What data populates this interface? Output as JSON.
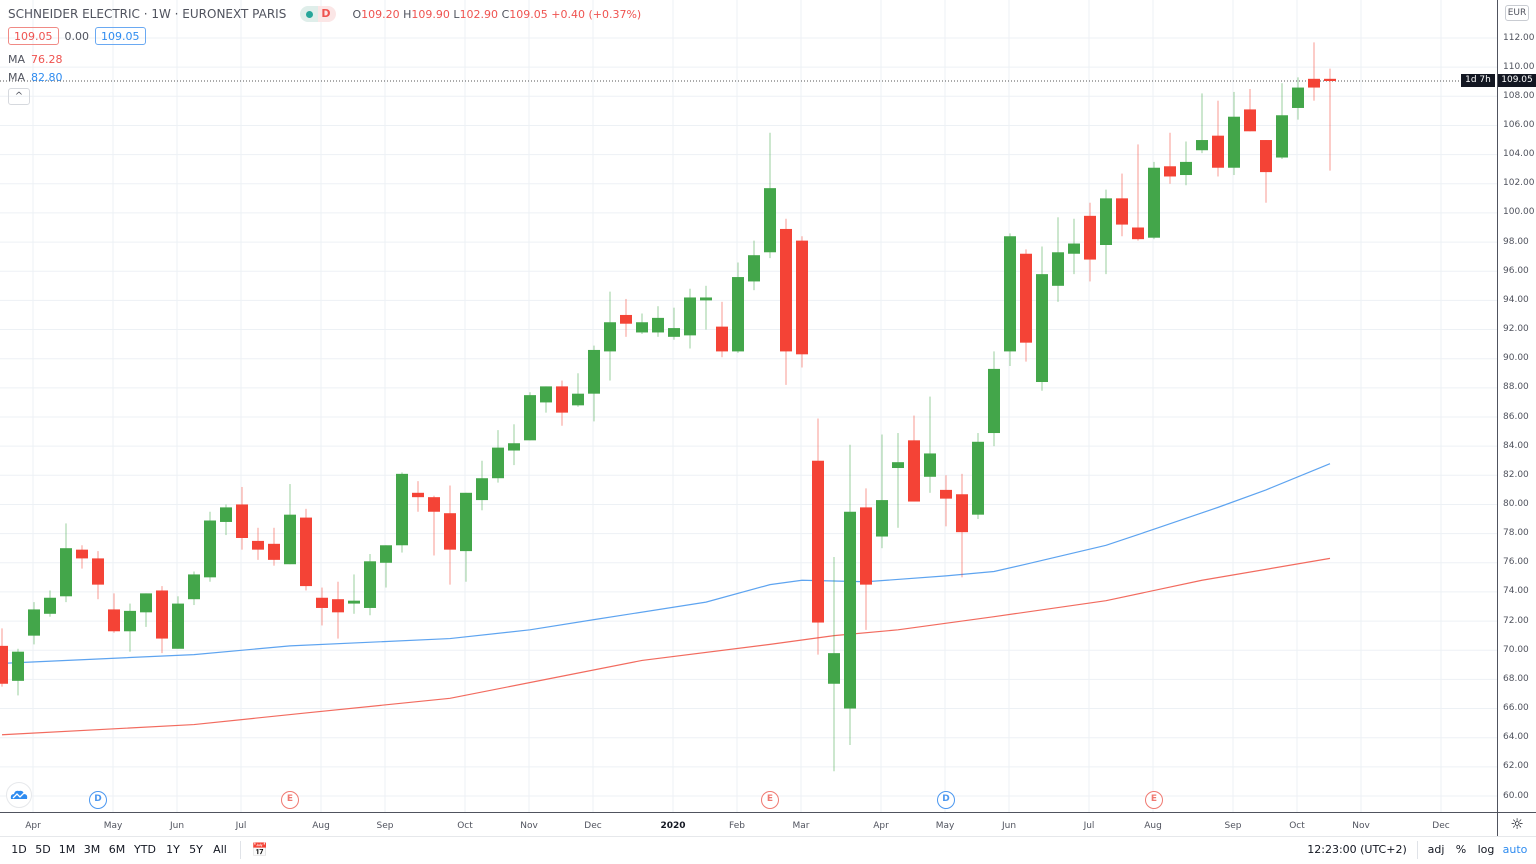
{
  "header": {
    "title": "SCHNEIDER ELECTRIC · 1W · EURONEXT PARIS",
    "market_status_badge": "D",
    "ohlc": {
      "o_label": "O",
      "o": "109.20",
      "h_label": "H",
      "h": "109.90",
      "l_label": "L",
      "l": "102.90",
      "c_label": "C",
      "c": "109.05",
      "change": "+0.40 (+0.37%)"
    },
    "bid": "109.05",
    "spread": "0.00",
    "ask": "109.05",
    "ma1": {
      "label": "MA",
      "value": "76.28"
    },
    "ma2": {
      "label": "MA",
      "value": "82.80"
    },
    "collapse_icon": "chevron-up-icon"
  },
  "right_axis": {
    "currency": "EUR",
    "ticks": [
      "112.00",
      "110.00",
      "108.00",
      "106.00",
      "104.00",
      "102.00",
      "100.00",
      "98.00",
      "96.00",
      "94.00",
      "92.00",
      "90.00",
      "88.00",
      "86.00",
      "84.00",
      "82.00",
      "80.00",
      "78.00",
      "76.00",
      "74.00",
      "72.00",
      "70.00",
      "68.00",
      "66.00",
      "64.00",
      "62.00",
      "60.00"
    ],
    "last_price": "109.05",
    "countdown": "1d 7h"
  },
  "colors": {
    "up": "#43a64a",
    "down": "#f44336",
    "ma_red": "#f26b5f",
    "ma_blue": "#5ea4f0",
    "grid": "#edf1f5"
  },
  "chart_data": {
    "type": "candlestick",
    "ylim": [
      60,
      112
    ],
    "grid": true,
    "x_ticks": [
      {
        "label": "Apr",
        "index": 2
      },
      {
        "label": "May",
        "index": 7
      },
      {
        "label": "Jun",
        "index": 11
      },
      {
        "label": "Jul",
        "index": 15
      },
      {
        "label": "Aug",
        "index": 20
      },
      {
        "label": "Sep",
        "index": 24
      },
      {
        "label": "Oct",
        "index": 29
      },
      {
        "label": "Nov",
        "index": 33
      },
      {
        "label": "Dec",
        "index": 37
      },
      {
        "label": "2020",
        "index": 42
      },
      {
        "label": "Feb",
        "index": 46
      },
      {
        "label": "Mar",
        "index": 50
      },
      {
        "label": "Apr",
        "index": 55
      },
      {
        "label": "May",
        "index": 59
      },
      {
        "label": "Jun",
        "index": 63
      },
      {
        "label": "Jul",
        "index": 68
      },
      {
        "label": "Aug",
        "index": 72
      },
      {
        "label": "Sep",
        "index": 77
      },
      {
        "label": "Oct",
        "index": 81
      },
      {
        "label": "Nov",
        "index": 85
      },
      {
        "label": "Dec",
        "index": 90
      }
    ],
    "ohlc": [
      [
        70.3,
        71.5,
        67.5,
        67.7
      ],
      [
        67.9,
        70.1,
        66.9,
        69.9
      ],
      [
        71.0,
        73.3,
        70.4,
        72.8
      ],
      [
        72.5,
        74.1,
        72.3,
        73.6
      ],
      [
        73.7,
        78.7,
        73.3,
        77.0
      ],
      [
        76.9,
        77.2,
        75.6,
        76.3
      ],
      [
        76.3,
        76.8,
        73.5,
        74.5
      ],
      [
        72.8,
        73.9,
        71.2,
        71.3
      ],
      [
        71.3,
        73.2,
        69.9,
        72.7
      ],
      [
        72.6,
        73.9,
        71.6,
        73.9
      ],
      [
        74.1,
        74.4,
        69.8,
        70.8
      ],
      [
        70.1,
        73.7,
        70.1,
        73.2
      ],
      [
        73.5,
        75.4,
        73.1,
        75.2
      ],
      [
        75.0,
        79.5,
        74.7,
        78.9
      ],
      [
        78.8,
        80.0,
        77.9,
        79.8
      ],
      [
        80.0,
        81.2,
        76.9,
        77.7
      ],
      [
        77.5,
        78.4,
        76.2,
        76.9
      ],
      [
        77.3,
        78.4,
        75.8,
        76.2
      ],
      [
        75.9,
        81.4,
        75.9,
        79.3
      ],
      [
        79.1,
        79.7,
        74.1,
        74.4
      ],
      [
        73.6,
        74.3,
        71.7,
        72.9
      ],
      [
        73.5,
        74.7,
        70.8,
        72.6
      ],
      [
        73.2,
        75.2,
        72.5,
        73.4
      ],
      [
        72.9,
        76.6,
        72.4,
        76.1
      ],
      [
        76.0,
        77.2,
        74.3,
        77.2
      ],
      [
        77.2,
        82.2,
        76.7,
        82.1
      ],
      [
        80.8,
        81.6,
        79.5,
        80.5
      ],
      [
        80.5,
        80.6,
        76.5,
        79.5
      ],
      [
        79.4,
        81.3,
        74.5,
        76.9
      ],
      [
        76.8,
        80.8,
        74.7,
        80.8
      ],
      [
        80.3,
        83.0,
        79.6,
        81.8
      ],
      [
        81.8,
        85.1,
        81.5,
        83.9
      ],
      [
        83.7,
        85.5,
        82.7,
        84.2
      ],
      [
        84.4,
        87.7,
        84.4,
        87.5
      ],
      [
        87.0,
        88.1,
        86.3,
        88.1
      ],
      [
        88.1,
        88.5,
        85.4,
        86.3
      ],
      [
        86.8,
        89.0,
        86.7,
        87.6
      ],
      [
        87.6,
        90.9,
        85.7,
        90.6
      ],
      [
        90.5,
        94.6,
        88.5,
        92.5
      ],
      [
        93.0,
        94.1,
        91.5,
        92.4
      ],
      [
        91.8,
        93.1,
        91.7,
        92.5
      ],
      [
        91.8,
        93.6,
        91.5,
        92.8
      ],
      [
        91.5,
        93.5,
        91.3,
        92.1
      ],
      [
        91.6,
        94.8,
        90.7,
        94.2
      ],
      [
        94.0,
        95.0,
        92.0,
        94.2
      ],
      [
        92.2,
        93.9,
        90.1,
        90.5
      ],
      [
        90.5,
        96.6,
        90.4,
        95.6
      ],
      [
        95.3,
        98.1,
        94.7,
        97.1
      ],
      [
        97.3,
        105.5,
        96.9,
        101.7
      ],
      [
        98.9,
        99.6,
        88.2,
        90.5
      ],
      [
        98.1,
        98.4,
        89.4,
        90.3
      ],
      [
        83.0,
        85.9,
        69.7,
        71.9
      ],
      [
        67.7,
        76.4,
        61.7,
        69.8
      ],
      [
        66.0,
        84.1,
        63.5,
        79.5
      ],
      [
        79.8,
        81.1,
        71.4,
        74.5
      ],
      [
        77.8,
        84.8,
        77.0,
        80.3
      ],
      [
        82.5,
        84.9,
        78.4,
        82.9
      ],
      [
        84.4,
        86.1,
        80.2,
        80.2
      ],
      [
        81.9,
        87.4,
        80.8,
        83.5
      ],
      [
        81.0,
        82.0,
        78.5,
        80.4
      ],
      [
        80.7,
        82.1,
        75.0,
        78.1
      ],
      [
        79.3,
        84.9,
        79.0,
        84.3
      ],
      [
        84.9,
        90.5,
        84.0,
        89.3
      ],
      [
        90.5,
        98.6,
        89.5,
        98.4
      ],
      [
        97.2,
        97.5,
        89.8,
        91.1
      ],
      [
        88.4,
        97.7,
        87.8,
        95.8
      ],
      [
        95.0,
        99.7,
        93.9,
        97.3
      ],
      [
        97.2,
        99.6,
        95.8,
        97.9
      ],
      [
        99.8,
        100.7,
        95.3,
        96.8
      ],
      [
        97.8,
        101.6,
        95.8,
        101.0
      ],
      [
        101.0,
        102.7,
        98.4,
        99.2
      ],
      [
        99.0,
        104.7,
        98.1,
        98.2
      ],
      [
        98.3,
        103.5,
        98.2,
        103.1
      ],
      [
        103.2,
        105.5,
        102.0,
        102.5
      ],
      [
        102.6,
        104.9,
        101.9,
        103.5
      ],
      [
        104.3,
        108.2,
        104.1,
        105.0
      ],
      [
        105.3,
        107.7,
        102.5,
        103.1
      ],
      [
        103.1,
        108.3,
        102.6,
        106.6
      ],
      [
        107.1,
        108.5,
        105.6,
        105.6
      ],
      [
        105.0,
        105.0,
        100.7,
        102.8
      ],
      [
        103.8,
        108.9,
        103.7,
        106.7
      ],
      [
        107.2,
        109.3,
        106.4,
        108.6
      ],
      [
        109.2,
        111.7,
        107.7,
        108.6
      ],
      [
        109.2,
        109.9,
        102.9,
        109.05
      ]
    ],
    "ma_series": [
      {
        "value_label": "76.28",
        "color": "#f26b5f",
        "points": [
          [
            0,
            64.2
          ],
          [
            12,
            64.9
          ],
          [
            19,
            65.7
          ],
          [
            28,
            66.7
          ],
          [
            34,
            68.0
          ],
          [
            40,
            69.3
          ],
          [
            48,
            70.4
          ],
          [
            52,
            71.0
          ],
          [
            56,
            71.4
          ],
          [
            62,
            72.3
          ],
          [
            69,
            73.4
          ],
          [
            75,
            74.8
          ],
          [
            83,
            76.3
          ]
        ]
      },
      {
        "value_label": "82.80",
        "color": "#5ea4f0",
        "points": [
          [
            0,
            69.1
          ],
          [
            6,
            69.4
          ],
          [
            12,
            69.7
          ],
          [
            18,
            70.3
          ],
          [
            28,
            70.8
          ],
          [
            33,
            71.4
          ],
          [
            37,
            72.1
          ],
          [
            44,
            73.3
          ],
          [
            48,
            74.5
          ],
          [
            50,
            74.8
          ],
          [
            54,
            74.7
          ],
          [
            59,
            75.1
          ],
          [
            62,
            75.4
          ],
          [
            64,
            75.9
          ],
          [
            69,
            77.2
          ],
          [
            72,
            78.3
          ],
          [
            76,
            79.8
          ],
          [
            79,
            81.0
          ],
          [
            83,
            82.8
          ]
        ]
      }
    ],
    "events": [
      {
        "type": "D",
        "index": 6
      },
      {
        "type": "E",
        "index": 18
      },
      {
        "type": "E",
        "index": 48
      },
      {
        "type": "D",
        "index": 59
      },
      {
        "type": "E",
        "index": 72
      }
    ]
  },
  "bottom_toolbar": {
    "ranges": [
      "1D",
      "5D",
      "1M",
      "3M",
      "6M",
      "YTD",
      "1Y",
      "5Y",
      "All"
    ],
    "goto_date_icon": "calendar-goto-icon",
    "time": "12:23:00 (UTC+2)",
    "adj": "adj",
    "percent": "%",
    "log": "log",
    "auto": "auto"
  }
}
